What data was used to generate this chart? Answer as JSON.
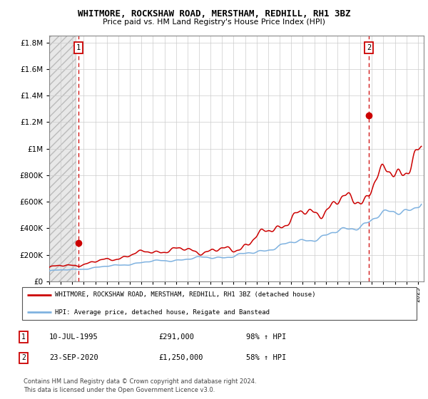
{
  "title": "WHITMORE, ROCKSHAW ROAD, MERSTHAM, REDHILL, RH1 3BZ",
  "subtitle": "Price paid vs. HM Land Registry's House Price Index (HPI)",
  "ylim": [
    0,
    1850000
  ],
  "yticks": [
    0,
    200000,
    400000,
    600000,
    800000,
    1000000,
    1200000,
    1400000,
    1600000,
    1800000
  ],
  "xlim_start": 1993.0,
  "xlim_end": 2025.5,
  "sale1_x": 1995.53,
  "sale1_y": 291000,
  "sale2_x": 2020.73,
  "sale2_y": 1250000,
  "legend_line1": "WHITMORE, ROCKSHAW ROAD, MERSTHAM, REDHILL, RH1 3BZ (detached house)",
  "legend_line2": "HPI: Average price, detached house, Reigate and Banstead",
  "table_row1": [
    "1",
    "10-JUL-1995",
    "£291,000",
    "98% ↑ HPI"
  ],
  "table_row2": [
    "2",
    "23-SEP-2020",
    "£1,250,000",
    "58% ↑ HPI"
  ],
  "footer": "Contains HM Land Registry data © Crown copyright and database right 2024.\nThis data is licensed under the Open Government Licence v3.0.",
  "hpi_color": "#7fb2e0",
  "sale_color": "#cc0000",
  "dashed_line_color": "#cc0000",
  "grid_color": "#cccccc"
}
